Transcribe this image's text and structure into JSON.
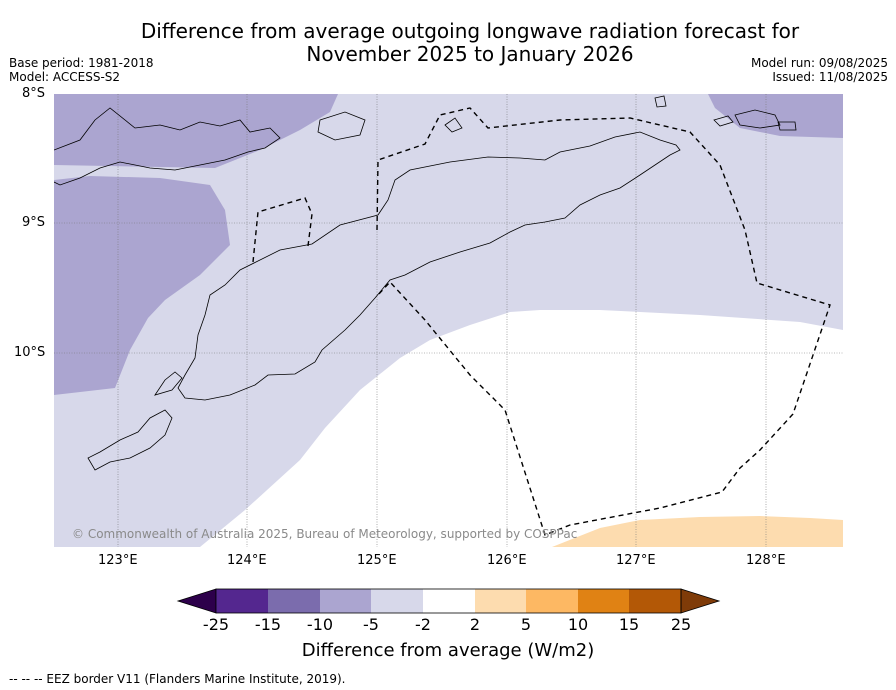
{
  "title_line1": "Difference from average outgoing longwave radiation forecast for",
  "title_line2": "November 2025 to January 2026",
  "base_period": "Base period: 1981-2018",
  "model": "Model: ACCESS-S2",
  "model_run": "Model run: 09/08/2025",
  "issued": "Issued: 11/08/2025",
  "lat_labels": [
    "8°S",
    "9°S",
    "10°S"
  ],
  "lon_labels": [
    "123°E",
    "124°E",
    "125°E",
    "126°E",
    "127°E",
    "128°E"
  ],
  "copyright": "© Commonwealth of Australia 2025, Bureau of Meteorology, supported by COSPPac",
  "colorbar": {
    "ticks": [
      "-25",
      "-15",
      "-10",
      "-5",
      "-2",
      "2",
      "5",
      "10",
      "15",
      "25"
    ],
    "colors": [
      "#54278f",
      "#7b6cad",
      "#aba5d0",
      "#d7d8ea",
      "#ffffff",
      "#fddcaf",
      "#fdb863",
      "#e08214",
      "#b35806"
    ],
    "under_color": "#2d004b",
    "over_color": "#7f3b08",
    "title": "Difference from average (W/m2)"
  },
  "footnote": "-- -- -- EEZ border V11 (Flanders Marine Institute, 2019)."
}
